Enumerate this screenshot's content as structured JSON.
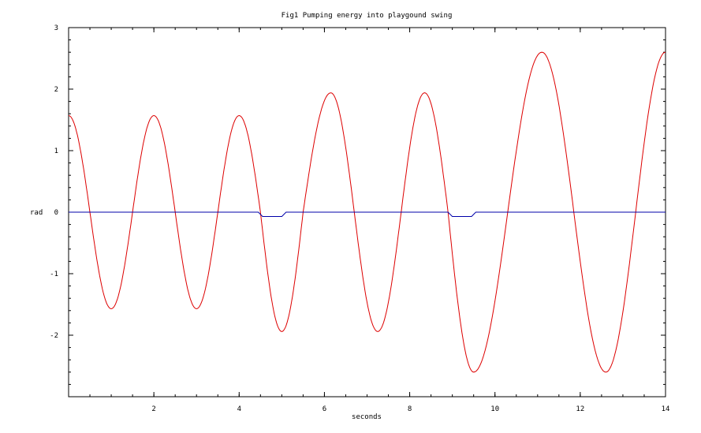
{
  "chart_data": {
    "type": "line",
    "title": "Fig1  Pumping energy into playgound swing",
    "xlabel": "seconds",
    "ylabel": "rad",
    "xlim": [
      0,
      14
    ],
    "ylim": [
      -3,
      3
    ],
    "xticks": [
      2,
      4,
      6,
      8,
      10,
      12,
      14
    ],
    "yticks": [
      3,
      2,
      1,
      0,
      -1,
      -2
    ],
    "grid": false,
    "colors": {
      "series1": "#dd0000",
      "series2": "#0000aa"
    },
    "series": [
      {
        "x": [
          0,
          0.5,
          1.0,
          1.5,
          2.0,
          2.5,
          3.0,
          3.5,
          4.0,
          4.5,
          5.0,
          5.5,
          6.15,
          6.7,
          7.25,
          7.8,
          8.35,
          8.9,
          9.5,
          10.3,
          11.1,
          11.85,
          12.6,
          13.3,
          14.0
        ],
        "values": [
          1.57,
          0.0,
          -1.57,
          0.0,
          1.57,
          0.0,
          -1.57,
          0.0,
          1.57,
          0.0,
          -1.94,
          0.0,
          1.94,
          0.0,
          -1.94,
          0.0,
          1.94,
          0.0,
          -2.6,
          0.0,
          2.6,
          0.0,
          -2.6,
          0.0,
          2.6
        ]
      },
      {
        "x": [
          0,
          4.45,
          4.55,
          5.0,
          5.1,
          8.9,
          9.0,
          9.45,
          9.55,
          14.0
        ],
        "values": [
          0,
          0,
          -0.07,
          -0.07,
          0,
          0,
          -0.07,
          -0.07,
          0,
          0
        ]
      }
    ]
  }
}
